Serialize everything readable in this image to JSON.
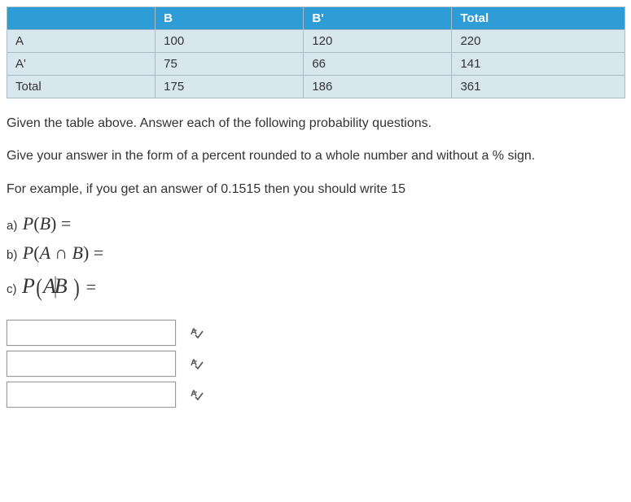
{
  "table": {
    "header_bg": "#2e9cd6",
    "header_fg": "#ffffff",
    "body_bg": "#d8e6ed",
    "body_fg": "#333333",
    "border_color": "#a8bcc8",
    "col_headers": [
      "",
      "B",
      "B'",
      "Total"
    ],
    "rows": [
      {
        "label": "A",
        "cells": [
          "100",
          "120",
          "220"
        ]
      },
      {
        "label": "A'",
        "cells": [
          "75",
          "66",
          "141"
        ]
      },
      {
        "label": "Total",
        "cells": [
          "175",
          "186",
          "361"
        ]
      }
    ],
    "col_widths_pct": [
      24,
      24,
      24,
      28
    ]
  },
  "instructions": {
    "p1": "Given the table above.  Answer each of the following probability questions.",
    "p2": "Give your answer in the form of a percent rounded to a whole number and  without a % sign.",
    "p3": "For example, if you get an answer of 0.1515 then you should write 15"
  },
  "questions": {
    "a": {
      "label": "a)",
      "expr_html": "P(B) ="
    },
    "b": {
      "label": "b)",
      "expr_html": "P(A ∩ B) ="
    },
    "c": {
      "label": "c)",
      "expr_html": "P(A|B) ="
    }
  },
  "answers": {
    "fields": [
      {
        "value": ""
      },
      {
        "value": ""
      },
      {
        "value": ""
      }
    ]
  },
  "icon_color": "#555555"
}
